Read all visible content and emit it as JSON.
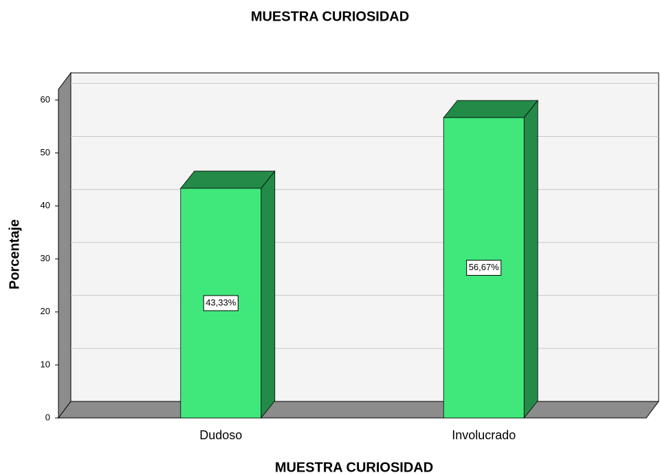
{
  "chart_data": {
    "type": "bar3d",
    "title": "MUESTRA CURIOSIDAD",
    "x_label": "MUESTRA CURIOSIDAD",
    "y_label": "Porcentaje",
    "categories": [
      "Dudoso",
      "Involucrado"
    ],
    "values": [
      43.33,
      56.67
    ],
    "value_labels": [
      "43,33%",
      "56,67%"
    ],
    "color": "#40e87c",
    "ylim": [
      0,
      62
    ],
    "yticks": [
      0,
      10,
      20,
      30,
      40,
      50,
      60
    ],
    "grid": true
  }
}
